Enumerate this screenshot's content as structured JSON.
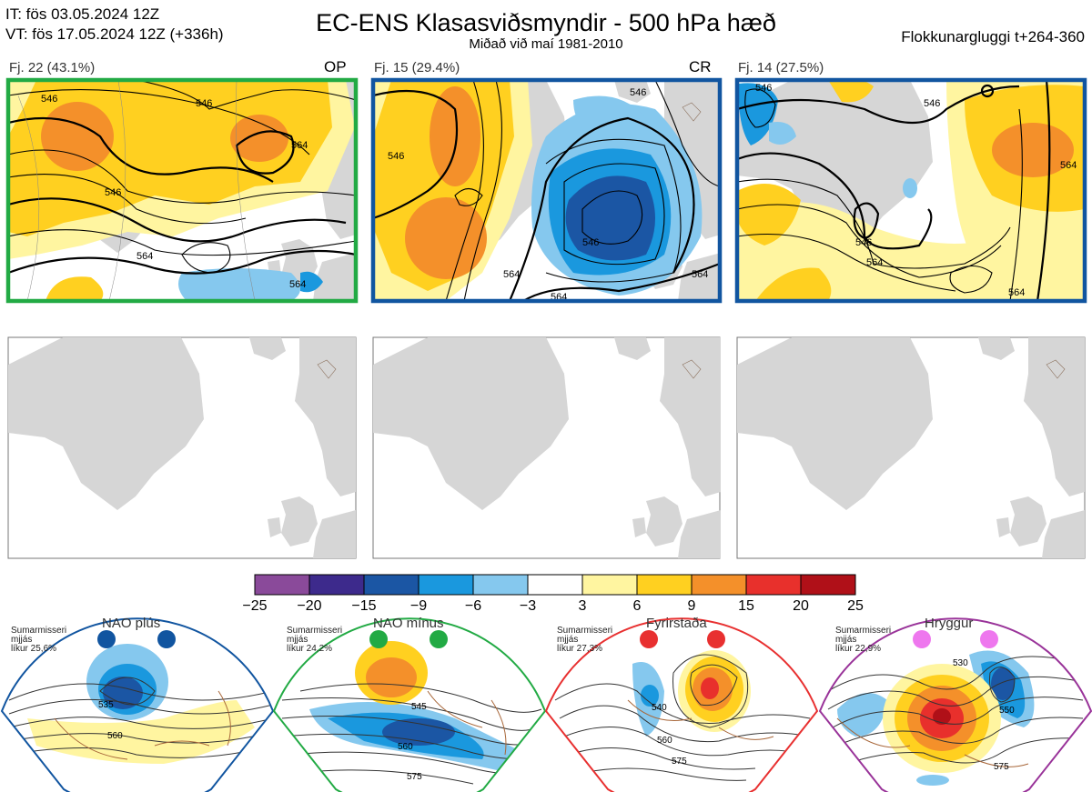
{
  "header": {
    "it_line": "IT: fös 03.05.2024 12Z",
    "vt_line": "VT: fös 17.05.2024 12Z  (+336h)",
    "title": "EC-ENS Klasasviðsmyndir - 500 hPa hæð",
    "subtitle": "Miðað við maí 1981-2010",
    "window": "Flokkunargluggi t+264-360"
  },
  "clusters": [
    {
      "label": "Fj. 22 (43.1%)",
      "tag": "OP",
      "frame_color": "#22aa44",
      "contours": [
        "546",
        "546",
        "564",
        "564",
        "564",
        "546"
      ]
    },
    {
      "label": "Fj. 15 (29.4%)",
      "tag": "CR",
      "frame_color": "#1155a0",
      "contours": [
        "546",
        "546",
        "546",
        "564",
        "564",
        "564"
      ]
    },
    {
      "label": "Fj. 14 (27.5%)",
      "tag": "",
      "frame_color": "#1155a0",
      "contours": [
        "546",
        "546",
        "546",
        "564",
        "564",
        "564"
      ]
    }
  ],
  "colorbar": {
    "ticks": [
      "−25",
      "−20",
      "−15",
      "−9",
      "−6",
      "−3",
      "3",
      "6",
      "9",
      "15",
      "20",
      "25"
    ],
    "colors": [
      "#8a4a9a",
      "#3d2a8c",
      "#1b56a4",
      "#1a98de",
      "#85c8ee",
      "#ffffff",
      "#fff5a0",
      "#ffd020",
      "#f4902a",
      "#e8302c",
      "#b01018"
    ]
  },
  "regimes": [
    {
      "name": "NAO plús",
      "note": [
        "Sumarmisseri",
        "mjjás",
        "líkur 25,6%"
      ],
      "color": "#1155a0",
      "contours": [
        "535",
        "560"
      ]
    },
    {
      "name": "NAO mínus",
      "note": [
        "Sumarmisseri",
        "mjjás",
        "líkur 24,2%"
      ],
      "color": "#22aa44",
      "contours": [
        "545",
        "560",
        "575"
      ]
    },
    {
      "name": "Fyrirstaða",
      "note": [
        "Sumarmisseri",
        "mjjás",
        "líkur 27,3%"
      ],
      "color": "#e83030",
      "contours": [
        "540",
        "560",
        "575"
      ]
    },
    {
      "name": "Hryggur",
      "note": [
        "Sumarmisseri",
        "mjjás",
        "líkur 22,9%"
      ],
      "color": "#993399",
      "contours": [
        "530",
        "550",
        "575"
      ]
    }
  ]
}
